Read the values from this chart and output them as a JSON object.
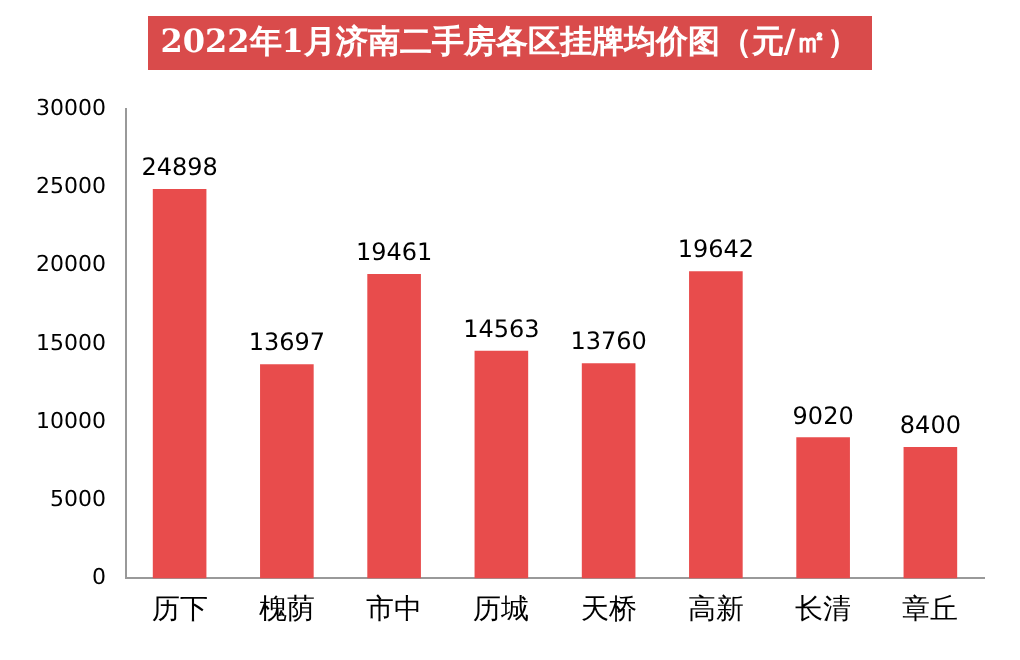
{
  "chart_data": {
    "type": "bar",
    "title": "2022年1月济南二手房各区挂牌均价图（元/㎡）",
    "categories": [
      "历下",
      "槐荫",
      "市中",
      "历城",
      "天桥",
      "高新",
      "长清",
      "章丘"
    ],
    "values": [
      24898,
      13697,
      19461,
      14563,
      13760,
      19642,
      9020,
      8400
    ],
    "color": "#e84c4c",
    "ylim": [
      0,
      30000
    ],
    "yticks": [
      0,
      5000,
      10000,
      15000,
      20000,
      25000,
      30000
    ],
    "grid": false,
    "legend": false,
    "data_labels": true
  }
}
